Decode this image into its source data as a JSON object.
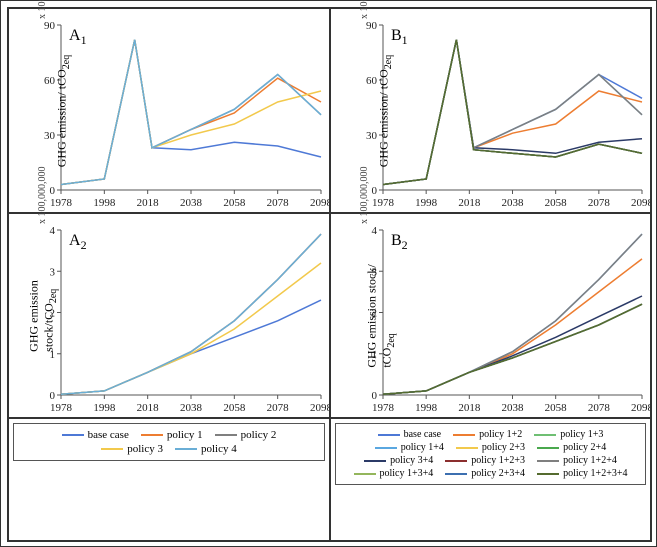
{
  "x_years": [
    1978,
    1998,
    2018,
    2038,
    2058,
    2078,
    2098
  ],
  "panels": {
    "A1": {
      "letter": "A",
      "sub": "1",
      "ylabel_html": "GHG emission/ tCO<sub>2eq</sub>",
      "scale": "x 100,000",
      "ylim": [
        0,
        90
      ],
      "yticks": [
        0,
        30,
        60,
        90
      ],
      "xticks": [
        1978,
        1998,
        2018,
        2038,
        2058,
        2078,
        2098
      ],
      "series": [
        {
          "name": "base case",
          "color": "#4e79d6",
          "y": [
            3,
            6,
            82,
            23,
            22,
            26,
            24,
            18
          ]
        },
        {
          "name": "policy 1",
          "color": "#ed7d31",
          "y": [
            3,
            6,
            82,
            23,
            33,
            42,
            61,
            48
          ]
        },
        {
          "name": "policy 2",
          "color": "#7f7f7f",
          "y": [
            3,
            6,
            82,
            23,
            33,
            44,
            63,
            41
          ]
        },
        {
          "name": "policy 3",
          "color": "#f2c94c",
          "y": [
            3,
            6,
            82,
            23,
            30,
            36,
            48,
            54
          ]
        },
        {
          "name": "policy 4",
          "color": "#6aaed6",
          "y": [
            3,
            6,
            82,
            23,
            33,
            44,
            63,
            41
          ]
        }
      ],
      "x_series": [
        1978,
        1998,
        2012,
        2020,
        2038,
        2058,
        2078,
        2098
      ]
    },
    "B1": {
      "letter": "B",
      "sub": "1",
      "ylabel_html": "GHG emission/ tCO<sub>2eq</sub>",
      "scale": "x 100,000",
      "ylim": [
        0,
        90
      ],
      "yticks": [
        0,
        30,
        60,
        90
      ],
      "xticks": [
        1978,
        1998,
        2018,
        2038,
        2058,
        2078,
        2098
      ],
      "series": [
        {
          "name": "base case",
          "color": "#4e79d6",
          "y": [
            3,
            6,
            82,
            23,
            33,
            44,
            63,
            50
          ]
        },
        {
          "name": "policy 1+2",
          "color": "#ed7d31",
          "y": [
            3,
            6,
            82,
            23,
            31,
            36,
            54,
            48
          ]
        },
        {
          "name": "policy 1+3",
          "color": "#6fbf73",
          "y": [
            3,
            6,
            82,
            22,
            20,
            18,
            25,
            20
          ]
        },
        {
          "name": "policy 1+4",
          "color": "#5aa7e0",
          "y": [
            3,
            6,
            82,
            23,
            33,
            44,
            63,
            41
          ]
        },
        {
          "name": "policy 2+3",
          "color": "#f2c94c",
          "y": [
            3,
            6,
            82,
            22,
            20,
            18,
            25,
            20
          ]
        },
        {
          "name": "policy 2+4",
          "color": "#4aa84e",
          "y": [
            3,
            6,
            82,
            22,
            20,
            18,
            25,
            20
          ]
        },
        {
          "name": "policy 3+4",
          "color": "#2b3a67",
          "y": [
            3,
            6,
            82,
            23,
            22,
            20,
            26,
            28
          ]
        },
        {
          "name": "policy 1+2+3",
          "color": "#8b2e2e",
          "y": [
            3,
            6,
            82,
            22,
            20,
            18,
            25,
            20
          ]
        },
        {
          "name": "policy 1+2+4",
          "color": "#7f7f7f",
          "y": [
            3,
            6,
            82,
            23,
            33,
            44,
            63,
            41
          ]
        },
        {
          "name": "policy 1+3+4",
          "color": "#94b65c",
          "y": [
            3,
            6,
            82,
            22,
            20,
            18,
            25,
            20
          ]
        },
        {
          "name": "policy 2+3+4",
          "color": "#3c6fb0",
          "y": [
            3,
            6,
            82,
            22,
            20,
            18,
            25,
            20
          ]
        },
        {
          "name": "policy 1+2+3+4",
          "color": "#556b2f",
          "y": [
            3,
            6,
            82,
            22,
            20,
            18,
            25,
            20
          ]
        }
      ],
      "x_series": [
        1978,
        1998,
        2012,
        2020,
        2038,
        2058,
        2078,
        2098
      ]
    },
    "A2": {
      "letter": "A",
      "sub": "2",
      "ylabel_html": "GHG emission<br>stock/tCO<sub>2eq</sub>",
      "scale": "x 100,000,000",
      "ylim": [
        0,
        4
      ],
      "yticks": [
        0,
        1,
        2,
        3,
        4
      ],
      "xticks": [
        1978,
        1998,
        2018,
        2038,
        2058,
        2078,
        2098
      ],
      "series": [
        {
          "name": "base case",
          "color": "#4e79d6",
          "y": [
            0.02,
            0.1,
            0.55,
            1.0,
            1.4,
            1.8,
            2.3
          ]
        },
        {
          "name": "policy 1",
          "color": "#ed7d31",
          "y": [
            0.02,
            0.1,
            0.55,
            1.05,
            1.8,
            2.8,
            3.9
          ]
        },
        {
          "name": "policy 2",
          "color": "#7f7f7f",
          "y": [
            0.02,
            0.1,
            0.55,
            1.05,
            1.8,
            2.8,
            3.9
          ]
        },
        {
          "name": "policy 3",
          "color": "#f2c94c",
          "y": [
            0.02,
            0.1,
            0.55,
            1.0,
            1.6,
            2.4,
            3.2
          ]
        },
        {
          "name": "policy 4",
          "color": "#6aaed6",
          "y": [
            0.02,
            0.1,
            0.55,
            1.05,
            1.8,
            2.8,
            3.9
          ]
        }
      ],
      "x_series": [
        1978,
        1998,
        2018,
        2038,
        2058,
        2078,
        2098
      ]
    },
    "B2": {
      "letter": "B",
      "sub": "2",
      "ylabel_html": "GHG emission stock/<br>tCO<sub>2eq</sub>",
      "scale": "x 100,000,000",
      "ylim": [
        0,
        4
      ],
      "yticks": [
        0,
        1,
        2,
        3,
        4
      ],
      "xticks": [
        1978,
        1998,
        2018,
        2038,
        2058,
        2078,
        2098
      ],
      "series": [
        {
          "name": "base case",
          "color": "#4e79d6",
          "y": [
            0.02,
            0.1,
            0.55,
            1.05,
            1.8,
            2.8,
            3.9
          ]
        },
        {
          "name": "policy 1+2",
          "color": "#ed7d31",
          "y": [
            0.02,
            0.1,
            0.55,
            1.0,
            1.7,
            2.5,
            3.3
          ]
        },
        {
          "name": "policy 1+3",
          "color": "#6fbf73",
          "y": [
            0.02,
            0.1,
            0.55,
            0.9,
            1.3,
            1.7,
            2.2
          ]
        },
        {
          "name": "policy 1+4",
          "color": "#5aa7e0",
          "y": [
            0.02,
            0.1,
            0.55,
            1.05,
            1.8,
            2.8,
            3.9
          ]
        },
        {
          "name": "policy 2+3",
          "color": "#f2c94c",
          "y": [
            0.02,
            0.1,
            0.55,
            0.9,
            1.3,
            1.7,
            2.2
          ]
        },
        {
          "name": "policy 2+4",
          "color": "#4aa84e",
          "y": [
            0.02,
            0.1,
            0.55,
            0.9,
            1.3,
            1.7,
            2.2
          ]
        },
        {
          "name": "policy 3+4",
          "color": "#2b3a67",
          "y": [
            0.02,
            0.1,
            0.55,
            0.95,
            1.4,
            1.9,
            2.4
          ]
        },
        {
          "name": "policy 1+2+3",
          "color": "#8b2e2e",
          "y": [
            0.02,
            0.1,
            0.55,
            0.9,
            1.3,
            1.7,
            2.2
          ]
        },
        {
          "name": "policy 1+2+4",
          "color": "#7f7f7f",
          "y": [
            0.02,
            0.1,
            0.55,
            1.05,
            1.8,
            2.8,
            3.9
          ]
        },
        {
          "name": "policy 1+3+4",
          "color": "#94b65c",
          "y": [
            0.02,
            0.1,
            0.55,
            0.9,
            1.3,
            1.7,
            2.2
          ]
        },
        {
          "name": "policy 2+3+4",
          "color": "#3c6fb0",
          "y": [
            0.02,
            0.1,
            0.55,
            0.9,
            1.3,
            1.7,
            2.2
          ]
        },
        {
          "name": "policy 1+2+3+4",
          "color": "#556b2f",
          "y": [
            0.02,
            0.1,
            0.55,
            0.9,
            1.3,
            1.7,
            2.2
          ]
        }
      ],
      "x_series": [
        1978,
        1998,
        2018,
        2038,
        2058,
        2078,
        2098
      ]
    }
  },
  "legendA": [
    {
      "label": "base case",
      "color": "#4e79d6"
    },
    {
      "label": "policy 1",
      "color": "#ed7d31"
    },
    {
      "label": "policy 2",
      "color": "#7f7f7f"
    },
    {
      "label": "policy 3",
      "color": "#f2c94c"
    },
    {
      "label": "policy 4",
      "color": "#6aaed6"
    }
  ],
  "legendB": [
    {
      "label": "base case",
      "color": "#4e79d6"
    },
    {
      "label": "policy 1+2",
      "color": "#ed7d31"
    },
    {
      "label": "policy 1+3",
      "color": "#6fbf73"
    },
    {
      "label": "policy 1+4",
      "color": "#5aa7e0"
    },
    {
      "label": "policy 2+3",
      "color": "#f2c94c"
    },
    {
      "label": "policy 2+4",
      "color": "#4aa84e"
    },
    {
      "label": "policy 3+4",
      "color": "#2b3a67"
    },
    {
      "label": "policy 1+2+3",
      "color": "#8b2e2e"
    },
    {
      "label": "policy 1+2+4",
      "color": "#7f7f7f"
    },
    {
      "label": "policy 1+3+4",
      "color": "#94b65c"
    },
    {
      "label": "policy 2+3+4",
      "color": "#3c6fb0"
    },
    {
      "label": "policy 1+2+3+4",
      "color": "#556b2f"
    }
  ]
}
